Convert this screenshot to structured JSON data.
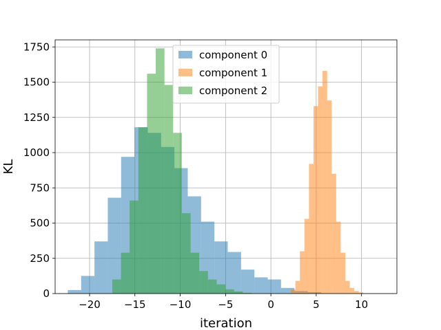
{
  "chart_data": {
    "type": "histogram",
    "title": "",
    "xlabel": "iteration",
    "ylabel": "KL",
    "xlim": [
      -23.8,
      13.9
    ],
    "ylim": [
      0,
      1800
    ],
    "xticks": [
      -20,
      -15,
      -10,
      -5,
      0,
      5,
      10
    ],
    "xtick_labels": [
      "−20",
      "−15",
      "−10",
      "−5",
      "0",
      "5",
      "10"
    ],
    "yticks": [
      0,
      250,
      500,
      750,
      1000,
      1250,
      1500,
      1750
    ],
    "ytick_labels": [
      "0",
      "250",
      "500",
      "750",
      "1000",
      "1250",
      "1500",
      "1750"
    ],
    "grid": true,
    "legend_position": "top-center",
    "series": [
      {
        "name": "component 0",
        "color": "#1f77b4",
        "alpha": 0.5,
        "bin_start": -22.4,
        "bin_width": 1.47,
        "counts": [
          25,
          125,
          370,
          680,
          970,
          1180,
          1140,
          1040,
          890,
          690,
          510,
          370,
          295,
          170,
          115,
          100,
          40,
          18,
          10
        ]
      },
      {
        "name": "component 1",
        "color": "#ff7f0e",
        "alpha": 0.5,
        "bin_start": 2.2,
        "bin_width": 0.5,
        "counts": [
          30,
          90,
          300,
          530,
          920,
          1330,
          1470,
          1580,
          1370,
          850,
          510,
          290,
          90,
          40,
          18,
          8
        ]
      },
      {
        "name": "component 2",
        "color": "#2ca02c",
        "alpha": 0.5,
        "bin_start": -17.5,
        "bin_width": 0.96,
        "counts": [
          100,
          290,
          660,
          1180,
          1560,
          1740,
          1480,
          1140,
          570,
          290,
          160,
          100,
          65,
          30,
          15,
          5
        ]
      }
    ]
  }
}
